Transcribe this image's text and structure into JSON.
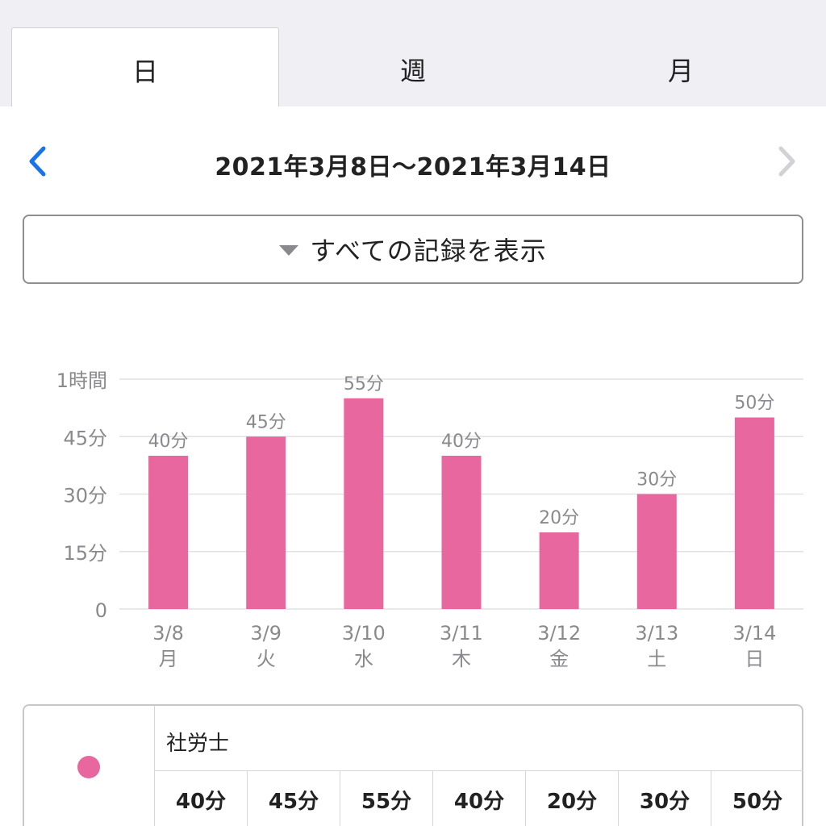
{
  "tabs": [
    {
      "label": "日",
      "active": true
    },
    {
      "label": "週",
      "active": false
    },
    {
      "label": "月",
      "active": false
    }
  ],
  "nav": {
    "date_range": "2021年3月8日〜2021年3月14日",
    "prev_icon": "chevron-left-icon",
    "next_icon": "chevron-right-icon",
    "prev_color": "#1a73e8",
    "next_color": "#d1d1d6"
  },
  "filter": {
    "label": "すべての記録を表示",
    "icon": "triangle-down-icon"
  },
  "chart_data": {
    "type": "bar",
    "categories": [
      "3/8",
      "3/9",
      "3/10",
      "3/11",
      "3/12",
      "3/13",
      "3/14"
    ],
    "weekdays": [
      "月",
      "火",
      "水",
      "木",
      "金",
      "土",
      "日"
    ],
    "values": [
      40,
      45,
      55,
      40,
      20,
      30,
      50
    ],
    "data_labels": [
      "40分",
      "45分",
      "55分",
      "40分",
      "20分",
      "30分",
      "50分"
    ],
    "ylim": [
      0,
      60
    ],
    "yticks": [
      0,
      15,
      30,
      45,
      60
    ],
    "ytick_labels": [
      "0",
      "15分",
      "30分",
      "45分",
      "1時間"
    ],
    "grid": true,
    "bar_color": "#e8679f",
    "series": [
      {
        "name": "社労士",
        "values": [
          40,
          45,
          55,
          40,
          20,
          30,
          50
        ]
      }
    ]
  },
  "legend": {
    "name": "社労士",
    "color": "#e8679f",
    "values": [
      "40分",
      "45分",
      "55分",
      "40分",
      "20分",
      "30分",
      "50分"
    ]
  }
}
